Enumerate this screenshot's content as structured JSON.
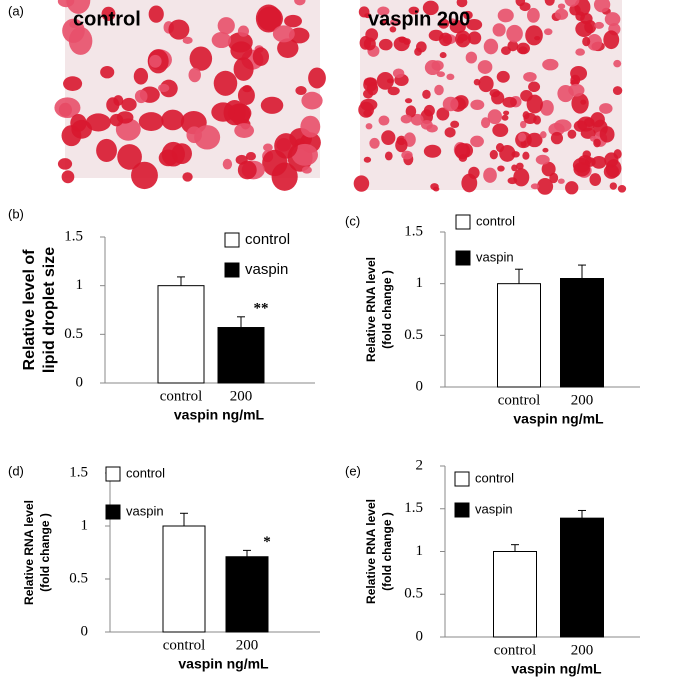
{
  "figure_a": {
    "panel": "(a)",
    "images": [
      "control",
      "vaspin 200"
    ]
  },
  "chart_data": [
    {
      "type": "bar",
      "panel": "(b)",
      "y_label": [
        "Relative level of",
        "lipid droplet size"
      ],
      "x_label": "vaspin ng/mL",
      "categories": [
        "control",
        "200"
      ],
      "ylim": [
        0,
        1.5
      ],
      "yticks": [
        0,
        0.5,
        1,
        1.5
      ],
      "series": [
        {
          "name": "control",
          "color": "#ffffff",
          "values": [
            1.0,
            null
          ],
          "errors": [
            0.09,
            null
          ]
        },
        {
          "name": "vaspin",
          "color": "#000000",
          "values": [
            null,
            0.57
          ],
          "errors": [
            null,
            0.11
          ]
        }
      ],
      "significance": [
        null,
        "**"
      ]
    },
    {
      "type": "bar",
      "panel": "(c)",
      "y_label": [
        "Relative RNA level",
        "(fold change )"
      ],
      "x_label": "vaspin ng/mL",
      "categories": [
        "control",
        "200"
      ],
      "ylim": [
        0,
        1.5
      ],
      "yticks": [
        0,
        0.5,
        1,
        1.5
      ],
      "series": [
        {
          "name": "control",
          "color": "#ffffff",
          "values": [
            1.0,
            null
          ],
          "errors": [
            0.14,
            null
          ]
        },
        {
          "name": "vaspin",
          "color": "#000000",
          "values": [
            null,
            1.05
          ],
          "errors": [
            null,
            0.13
          ]
        }
      ]
    },
    {
      "type": "bar",
      "panel": "(d)",
      "y_label": [
        "Relative RNA level",
        "(fold change )"
      ],
      "x_label": "vaspin ng/mL",
      "categories": [
        "control",
        "200"
      ],
      "ylim": [
        0,
        1.5
      ],
      "yticks": [
        0,
        0.5,
        1,
        1.5
      ],
      "series": [
        {
          "name": "control",
          "color": "#ffffff",
          "values": [
            1.0,
            null
          ],
          "errors": [
            0.12,
            null
          ]
        },
        {
          "name": "vaspin",
          "color": "#000000",
          "values": [
            null,
            0.71
          ],
          "errors": [
            null,
            0.06
          ]
        }
      ],
      "significance": [
        null,
        "*"
      ]
    },
    {
      "type": "bar",
      "panel": "(e)",
      "y_label": [
        "Relative RNA level",
        "(fold change )"
      ],
      "x_label": "vaspin ng/mL",
      "categories": [
        "control",
        "200"
      ],
      "ylim": [
        0,
        2
      ],
      "yticks": [
        0,
        0.5,
        1,
        1.5,
        2
      ],
      "series": [
        {
          "name": "control",
          "color": "#ffffff",
          "values": [
            1.0,
            null
          ],
          "errors": [
            0.08,
            null
          ]
        },
        {
          "name": "vaspin",
          "color": "#000000",
          "values": [
            null,
            1.39
          ],
          "errors": [
            null,
            0.09
          ]
        }
      ]
    }
  ]
}
